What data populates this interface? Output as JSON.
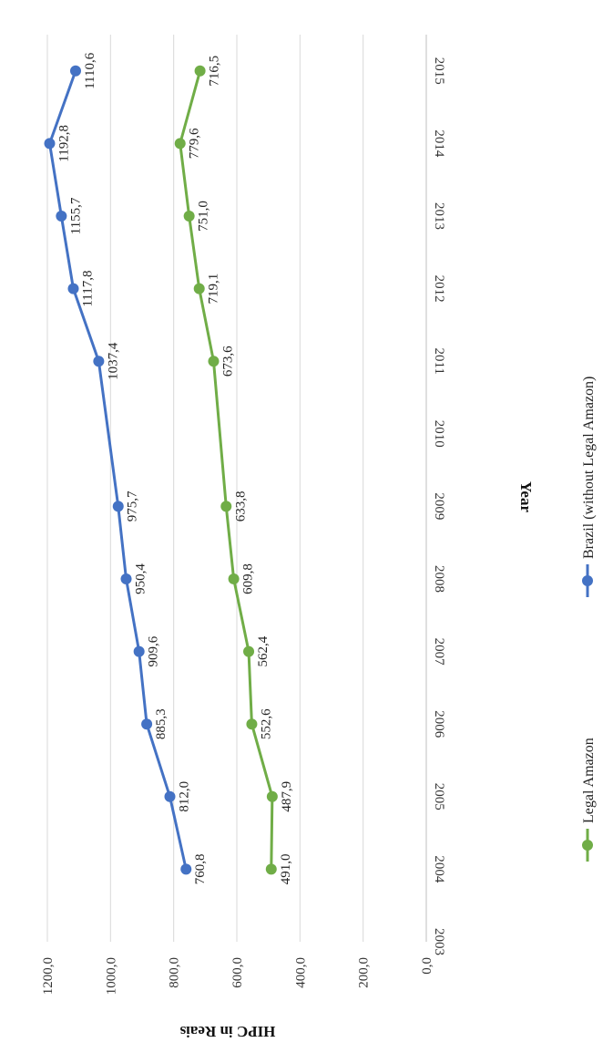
{
  "chart_data": {
    "type": "line",
    "title": "",
    "xlabel": "Year",
    "ylabel": "HIPC in Reais",
    "categories": [
      "2003",
      "2004",
      "2005",
      "2006",
      "2007",
      "2008",
      "2009",
      "2010",
      "2011",
      "2012",
      "2013",
      "2014",
      "2015"
    ],
    "ylim": [
      0,
      1200
    ],
    "y_ticks": [
      "0,0",
      "200,0",
      "400,0",
      "600,0",
      "800,0",
      "1000,0",
      "1200,0"
    ],
    "grid": true,
    "legend_position": "bottom",
    "orientation": "rotated 90 degrees clockwise",
    "series": [
      {
        "name": "Legal Amazon",
        "color": "#70ad47",
        "x": [
          "2004",
          "2005",
          "2006",
          "2007",
          "2008",
          "2009",
          "2011",
          "2012",
          "2013",
          "2014",
          "2015"
        ],
        "values": [
          491.0,
          487.9,
          552.6,
          562.4,
          609.8,
          633.8,
          673.6,
          719.1,
          751.0,
          779.6,
          716.5
        ],
        "labels": [
          "491,0",
          "487,9",
          "552,6",
          "562,4",
          "609,8",
          "633,8",
          "673,6",
          "719,1",
          "751,0",
          "779,6",
          "716,5"
        ]
      },
      {
        "name": "Brazil (without Legal Amazon)",
        "color": "#4472c4",
        "x": [
          "2004",
          "2005",
          "2006",
          "2007",
          "2008",
          "2009",
          "2011",
          "2012",
          "2013",
          "2014",
          "2015"
        ],
        "values": [
          760.8,
          812.0,
          885.3,
          909.6,
          950.4,
          975.7,
          1037.4,
          1117.8,
          1155.7,
          1192.8,
          1110.6
        ],
        "labels": [
          "760,8",
          "812,0",
          "885,3",
          "909,6",
          "950,4",
          "975,7",
          "1037,4",
          "1117,8",
          "1155,7",
          "1192,8",
          "1110,6"
        ]
      }
    ]
  }
}
